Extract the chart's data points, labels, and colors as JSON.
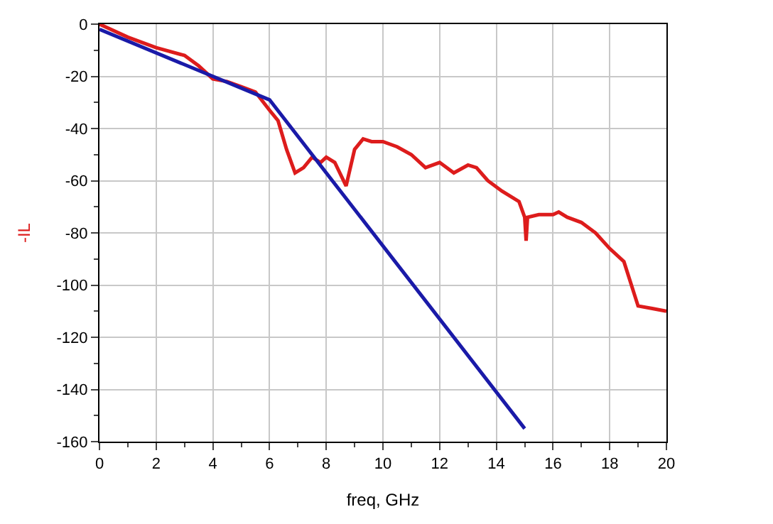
{
  "chart_data": {
    "type": "line",
    "xlabel": "freq, GHz",
    "ylabel": "-IL",
    "xlim": [
      0,
      20
    ],
    "ylim": [
      -160,
      0
    ],
    "xticks": [
      0,
      2,
      4,
      6,
      8,
      10,
      12,
      14,
      16,
      18,
      20
    ],
    "yticks": [
      -160,
      -140,
      -120,
      -100,
      -80,
      -60,
      -40,
      -20,
      0
    ],
    "grid": true,
    "marker": "none",
    "line_style": "solid",
    "series": [
      {
        "color": "#dd1c1c",
        "x": [
          0,
          1,
          2,
          3,
          3.5,
          4,
          4.5,
          5,
          5.5,
          6,
          6.3,
          6.6,
          6.9,
          7.2,
          7.5,
          7.8,
          8,
          8.3,
          8.7,
          9,
          9.3,
          9.6,
          10,
          10.5,
          11,
          11.5,
          12,
          12.5,
          13,
          13.3,
          13.7,
          14.2,
          14.8,
          15,
          15.05,
          15.1,
          15.5,
          16,
          16.2,
          16.5,
          17,
          17.5,
          18,
          18.5,
          19,
          19.5,
          20
        ],
        "values": [
          0,
          -5,
          -9,
          -12,
          -16,
          -21,
          -22,
          -24,
          -26,
          -33,
          -37,
          -48,
          -57,
          -55,
          -51,
          -53,
          -51,
          -53,
          -62,
          -48,
          -44,
          -45,
          -45,
          -47,
          -50,
          -55,
          -53,
          -57,
          -54,
          -55,
          -60,
          -64,
          -68,
          -74,
          -83,
          -74,
          -73,
          -73,
          -72,
          -74,
          -76,
          -80,
          -86,
          -91,
          -108,
          -109,
          -110
        ]
      },
      {
        "color": "#1a1aa8",
        "x": [
          0,
          6,
          15
        ],
        "values": [
          -2,
          -29,
          -155
        ]
      }
    ]
  }
}
